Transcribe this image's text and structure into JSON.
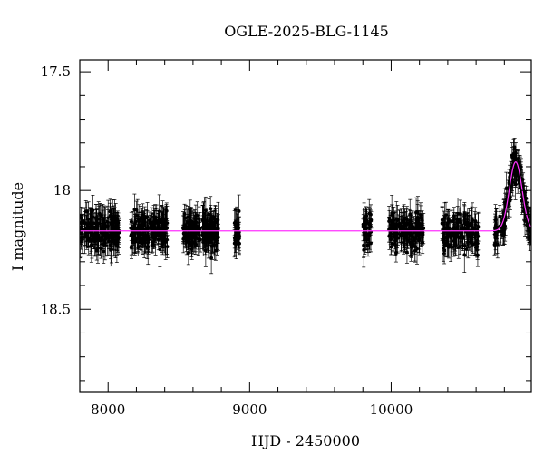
{
  "chart_data": {
    "type": "scatter",
    "title": "OGLE-2025-BLG-1145",
    "xlabel": "HJD - 2450000",
    "ylabel": "I magnitude",
    "xlim": [
      7800,
      10990
    ],
    "ylim": [
      18.85,
      17.45
    ],
    "y_inverted": true,
    "xticks": [
      8000,
      9000,
      10000
    ],
    "xtick_labels": [
      "8000",
      "9000",
      "10000"
    ],
    "yticks": [
      17.5,
      18,
      18.5
    ],
    "ytick_labels": [
      "17.5",
      "18",
      "18.5"
    ],
    "grid": false,
    "marker_color": "#000000",
    "model_color": "#ff33ff",
    "model": {
      "baseline": 18.17,
      "peak_time": 10880,
      "peak_mag": 17.88,
      "width": 45
    },
    "observing_seasons": [
      {
        "start": 7800,
        "end": 8080,
        "n": 180
      },
      {
        "start": 8160,
        "end": 8420,
        "n": 180
      },
      {
        "start": 8530,
        "end": 8780,
        "n": 180
      },
      {
        "start": 8890,
        "end": 8930,
        "n": 30
      },
      {
        "start": 9800,
        "end": 9860,
        "n": 40
      },
      {
        "start": 9980,
        "end": 10230,
        "n": 150
      },
      {
        "start": 10360,
        "end": 10620,
        "n": 150
      },
      {
        "start": 10730,
        "end": 10990,
        "n": 160
      }
    ],
    "scatter_sigma": 0.035,
    "error_bar_typical": 0.05
  }
}
